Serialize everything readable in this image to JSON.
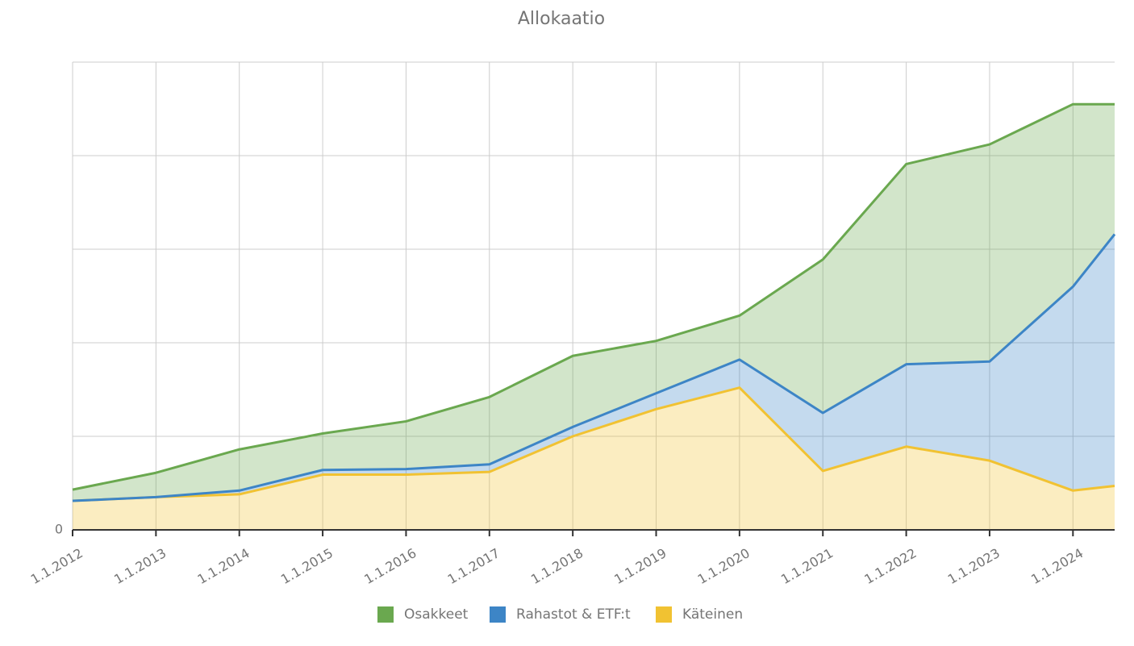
{
  "chart_data": {
    "type": "stacked-area",
    "title": "Allokaatio",
    "x": [
      2012,
      2013,
      2014,
      2015,
      2016,
      2017,
      2018,
      2019,
      2020,
      2021,
      2022,
      2023,
      2024,
      2024.5
    ],
    "xlim": [
      2012,
      2024.5
    ],
    "xticks": [
      {
        "value": 2012,
        "label": "1.1.2012"
      },
      {
        "value": 2013,
        "label": "1.1.2013"
      },
      {
        "value": 2014,
        "label": "1.1.2014"
      },
      {
        "value": 2015,
        "label": "1.1.2015"
      },
      {
        "value": 2016,
        "label": "1.1.2016"
      },
      {
        "value": 2017,
        "label": "1.1.2017"
      },
      {
        "value": 2018,
        "label": "1.1.2018"
      },
      {
        "value": 2019,
        "label": "1.1.2019"
      },
      {
        "value": 2020,
        "label": "1.1.2020"
      },
      {
        "value": 2021,
        "label": "1.1.2021"
      },
      {
        "value": 2022,
        "label": "1.1.2022"
      },
      {
        "value": 2023,
        "label": "1.1.2023"
      },
      {
        "value": 2024,
        "label": "1.1.2024"
      }
    ],
    "ylim": [
      0,
      5
    ],
    "yticks": [
      0
    ],
    "ygrid": [
      0,
      1,
      2,
      3,
      4,
      5
    ],
    "grid": true,
    "series": [
      {
        "name": "Osakkeet",
        "color": "#6aa84f",
        "values": [
          0.12,
          0.26,
          0.44,
          0.39,
          0.51,
          0.72,
          0.76,
          0.56,
          0.47,
          1.64,
          2.14,
          2.32,
          1.95,
          1.39
        ]
      },
      {
        "name": "Rahastot & ETF:t",
        "color": "#3d85c6",
        "values": [
          0,
          0,
          0.04,
          0.05,
          0.06,
          0.08,
          0.1,
          0.17,
          0.3,
          0.62,
          0.88,
          1.06,
          2.18,
          2.69
        ]
      },
      {
        "name": "Käteinen",
        "color": "#f1c232",
        "values": [
          0.31,
          0.35,
          0.38,
          0.59,
          0.59,
          0.62,
          1.0,
          1.29,
          1.52,
          0.63,
          0.89,
          0.74,
          0.42,
          0.47
        ]
      }
    ],
    "legend": "bottom"
  }
}
